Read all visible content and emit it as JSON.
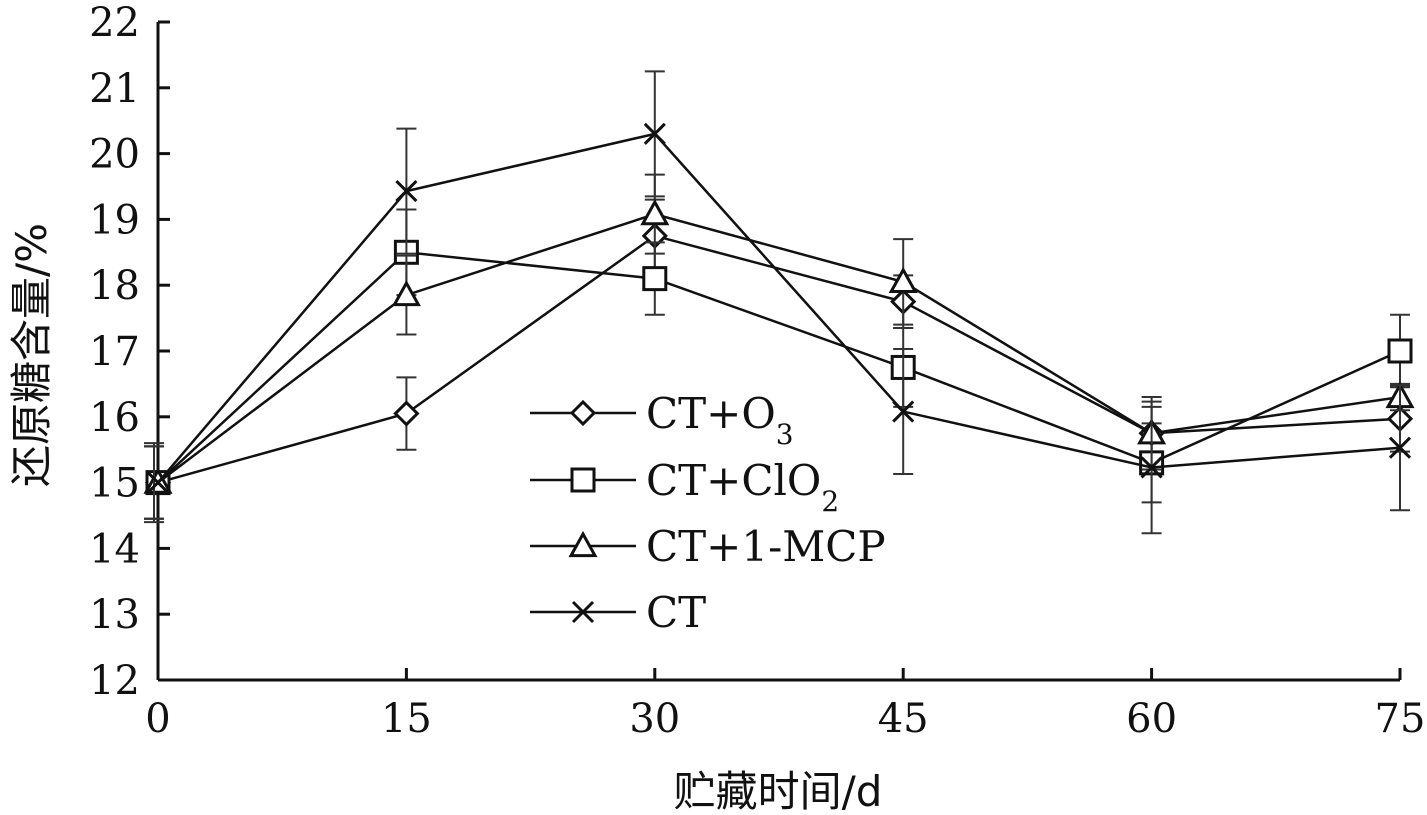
{
  "chart_data": {
    "type": "line",
    "xlabel": "贮藏时间/d",
    "ylabel": "还原糖含量/%",
    "x": [
      0,
      15,
      30,
      45,
      60,
      75
    ],
    "xlim": [
      0,
      75
    ],
    "ylim": [
      12,
      22
    ],
    "x_ticks": [
      "0",
      "15",
      "30",
      "45",
      "60",
      "75"
    ],
    "y_ticks": [
      "12",
      "13",
      "14",
      "15",
      "16",
      "17",
      "18",
      "19",
      "20",
      "21",
      "22"
    ],
    "grid": false,
    "legend_position": "center",
    "series": [
      {
        "name": "CT+O3",
        "legend_base": "CT+O",
        "legend_sub": "3",
        "marker": "diamond",
        "values": [
          15.0,
          16.05,
          18.75,
          17.75,
          15.75,
          15.97
        ],
        "errors": [
          0.55,
          0.55,
          0.55,
          0.4,
          0.4,
          0.5
        ]
      },
      {
        "name": "CT+ClO2",
        "legend_base": "CT+ClO",
        "legend_sub": "2",
        "marker": "square",
        "values": [
          15.0,
          18.5,
          18.1,
          16.75,
          15.3,
          17.0
        ],
        "errors": [
          0.55,
          0.65,
          0.55,
          0.6,
          0.6,
          0.55
        ]
      },
      {
        "name": "CT+1-MCP",
        "legend_base": "CT+1-MCP",
        "legend_sub": "",
        "marker": "triangle",
        "values": [
          15.0,
          17.85,
          19.08,
          18.05,
          15.75,
          16.3
        ],
        "errors": [
          0.55,
          0.6,
          0.6,
          0.65,
          0.55,
          0.2
        ]
      },
      {
        "name": "CT",
        "legend_base": "CT",
        "legend_sub": "",
        "marker": "x",
        "values": [
          15.0,
          19.43,
          20.3,
          16.08,
          15.23,
          15.53
        ],
        "errors": [
          0.6,
          0.95,
          0.95,
          0.95,
          1.0,
          0.95
        ]
      }
    ]
  }
}
